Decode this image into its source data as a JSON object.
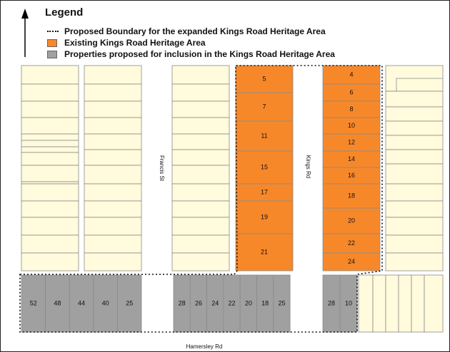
{
  "legend": {
    "title": "Legend",
    "items": [
      {
        "label": "Proposed Boundary for the expanded Kings Road Heritage Area"
      },
      {
        "label": "Existing Kings Road Heritage Area"
      },
      {
        "label": "Properties proposed for inclusion in the Kings Road Heritage Area"
      }
    ]
  },
  "colors": {
    "existing": "#F7882A",
    "proposed": "#A0A0A0",
    "other": "#FFFBDC",
    "lot_border": "#8A8A8A"
  },
  "streets": {
    "francis": "Francis St",
    "kings": "Kings Rd",
    "hamersley": "Hamersley Rd"
  },
  "existing_west_lots": [
    "5",
    "7",
    "11",
    "15",
    "17",
    "19",
    "21"
  ],
  "existing_east_lots": [
    "4",
    "6",
    "8",
    "10",
    "12",
    "14",
    "16",
    "18",
    "20",
    "22",
    "24"
  ],
  "proposed_group_1": [
    "52",
    "48",
    "44",
    "40",
    "25"
  ],
  "proposed_group_2": [
    "28",
    "26",
    "24",
    "22",
    "20",
    "18",
    "25"
  ],
  "proposed_group_3": [
    "28",
    "10"
  ]
}
